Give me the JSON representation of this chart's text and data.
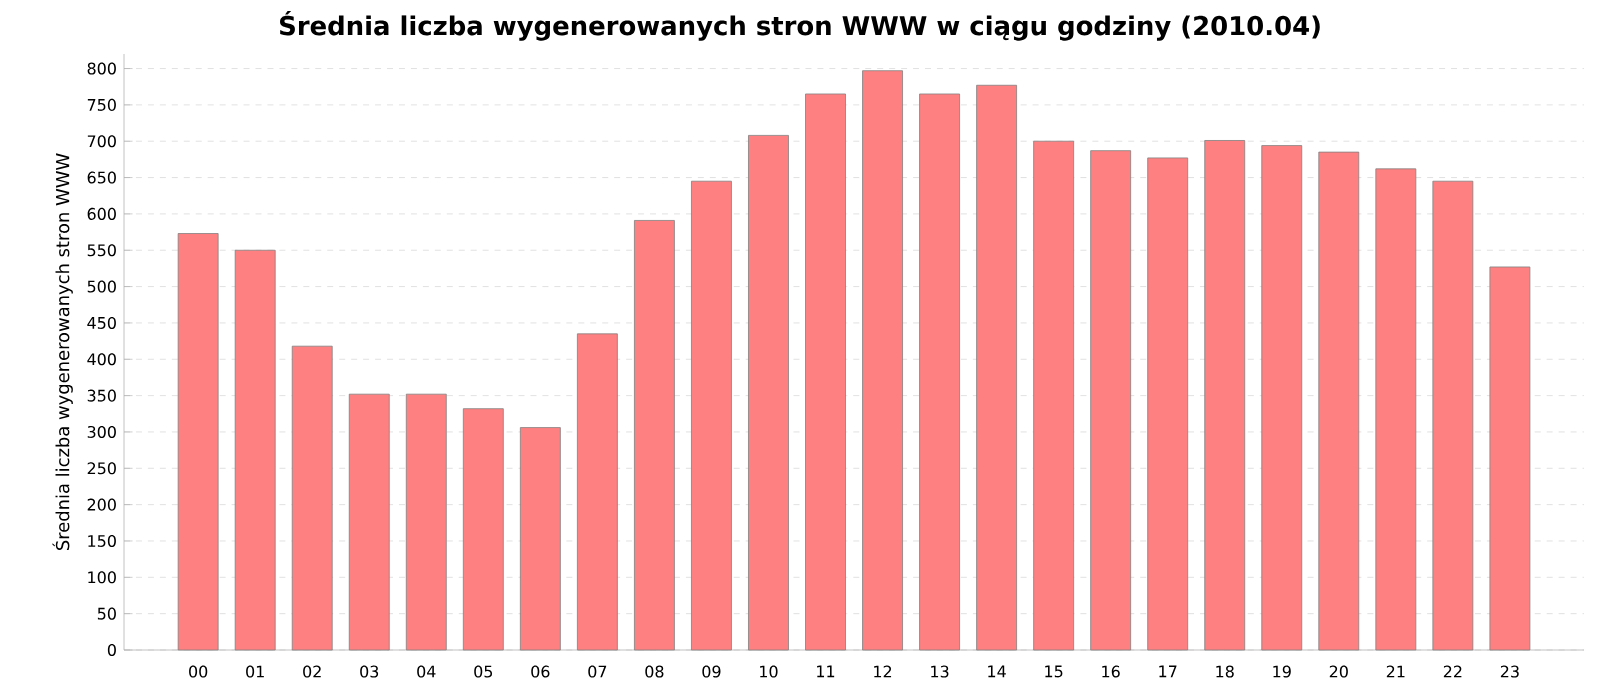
{
  "chart_data": {
    "type": "bar",
    "title": "Średnia liczba wygenerowanych stron WWW w ciągu godziny (2010.04)",
    "ylabel": "Średnia liczba wygenerowanych stron WWW",
    "categories": [
      "00",
      "01",
      "02",
      "03",
      "04",
      "05",
      "06",
      "07",
      "08",
      "09",
      "10",
      "11",
      "12",
      "13",
      "14",
      "15",
      "16",
      "17",
      "18",
      "19",
      "20",
      "21",
      "22",
      "23"
    ],
    "values": [
      573,
      550,
      418,
      352,
      352,
      332,
      306,
      435,
      591,
      645,
      708,
      765,
      797,
      765,
      777,
      700,
      687,
      677,
      701,
      694,
      685,
      662,
      645,
      527
    ],
    "color": "#ff8080",
    "ylim": [
      0,
      820
    ],
    "yticks": [
      0,
      50,
      100,
      150,
      200,
      250,
      300,
      350,
      400,
      450,
      500,
      550,
      600,
      650,
      700,
      750,
      800
    ],
    "grid": "y"
  }
}
